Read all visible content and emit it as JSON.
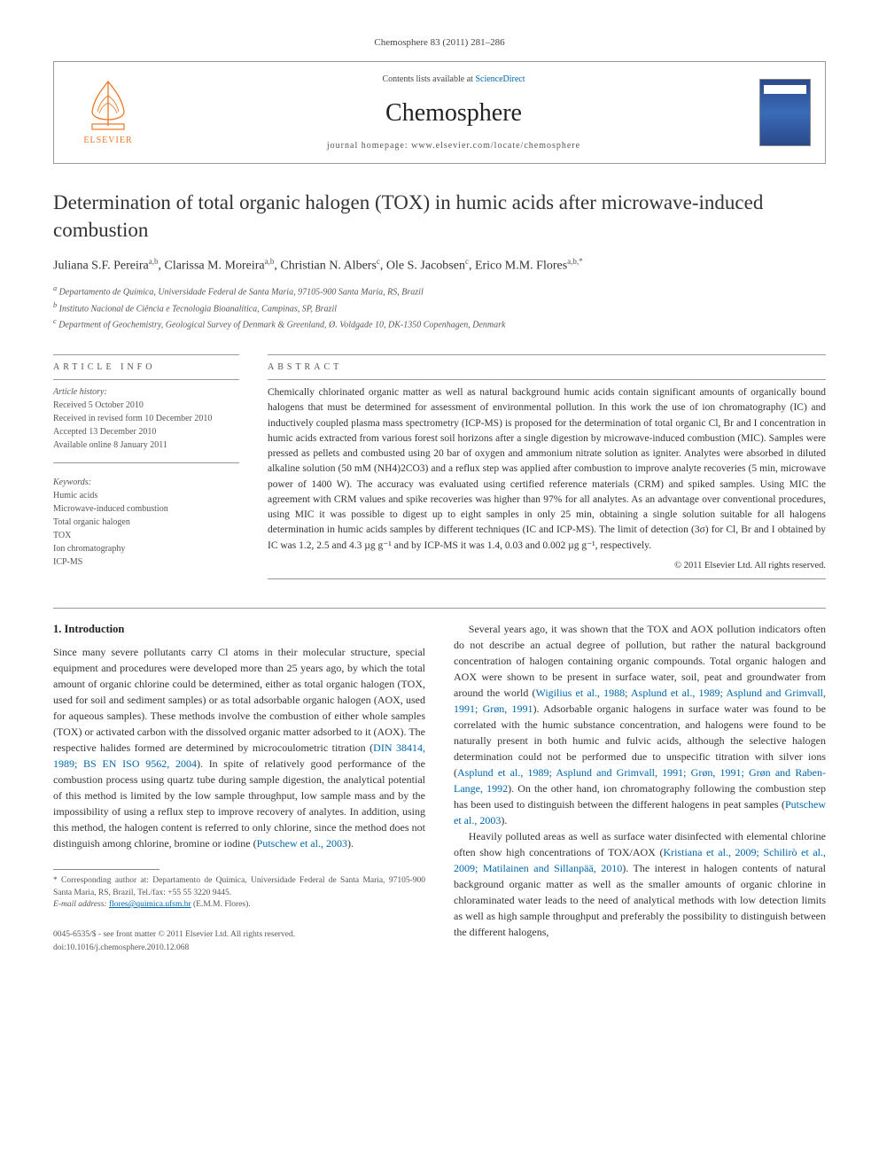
{
  "journal_ref": "Chemosphere 83 (2011) 281–286",
  "header": {
    "contents_prefix": "Contents lists available at ",
    "contents_link": "ScienceDirect",
    "journal_title": "Chemosphere",
    "homepage_prefix": "journal homepage: ",
    "homepage_url": "www.elsevier.com/locate/chemosphere",
    "publisher": "ELSEVIER"
  },
  "title": "Determination of total organic halogen (TOX) in humic acids after microwave-induced combustion",
  "authors_html": "Juliana S.F. Pereira<sup>a,b</sup>, Clarissa M. Moreira<sup>a,b</sup>, Christian N. Albers<sup>c</sup>, Ole S. Jacobsen<sup>c</sup>, Erico M.M. Flores<sup>a,b,*</sup>",
  "affiliations": {
    "a": "Departamento de Química, Universidade Federal de Santa Maria, 97105-900 Santa Maria, RS, Brazil",
    "b": "Instituto Nacional de Ciência e Tecnologia Bioanalítica, Campinas, SP, Brazil",
    "c": "Department of Geochemistry, Geological Survey of Denmark & Greenland, Ø. Voldgade 10, DK-1350 Copenhagen, Denmark"
  },
  "article_info": {
    "heading": "ARTICLE INFO",
    "history_label": "Article history:",
    "history": [
      "Received 5 October 2010",
      "Received in revised form 10 December 2010",
      "Accepted 13 December 2010",
      "Available online 8 January 2011"
    ],
    "keywords_label": "Keywords:",
    "keywords": [
      "Humic acids",
      "Microwave-induced combustion",
      "Total organic halogen",
      "TOX",
      "Ion chromatography",
      "ICP-MS"
    ]
  },
  "abstract": {
    "heading": "ABSTRACT",
    "text": "Chemically chlorinated organic matter as well as natural background humic acids contain significant amounts of organically bound halogens that must be determined for assessment of environmental pollution. In this work the use of ion chromatography (IC) and inductively coupled plasma mass spectrometry (ICP-MS) is proposed for the determination of total organic Cl, Br and I concentration in humic acids extracted from various forest soil horizons after a single digestion by microwave-induced combustion (MIC). Samples were pressed as pellets and combusted using 20 bar of oxygen and ammonium nitrate solution as igniter. Analytes were absorbed in diluted alkaline solution (50 mM (NH4)2CO3) and a reflux step was applied after combustion to improve analyte recoveries (5 min, microwave power of 1400 W). The accuracy was evaluated using certified reference materials (CRM) and spiked samples. Using MIC the agreement with CRM values and spike recoveries was higher than 97% for all analytes. As an advantage over conventional procedures, using MIC it was possible to digest up to eight samples in only 25 min, obtaining a single solution suitable for all halogens determination in humic acids samples by different techniques (IC and ICP-MS). The limit of detection (3σ) for Cl, Br and I obtained by IC was 1.2, 2.5 and 4.3 µg g⁻¹ and by ICP-MS it was 1.4, 0.03 and 0.002 µg g⁻¹, respectively.",
    "copyright": "© 2011 Elsevier Ltd. All rights reserved."
  },
  "body": {
    "section_number": "1.",
    "section_title": "Introduction",
    "col1": [
      "Since many severe pollutants carry Cl atoms in their molecular structure, special equipment and procedures were developed more than 25 years ago, by which the total amount of organic chlorine could be determined, either as total organic halogen (TOX, used for soil and sediment samples) or as total adsorbable organic halogen (AOX, used for aqueous samples). These methods involve the combustion of either whole samples (TOX) or activated carbon with the dissolved organic matter adsorbed to it (AOX). The respective halides formed are determined by microcoulometric titration (<span class=\"ref-link\">DIN 38414, 1989; BS EN ISO 9562, 2004</span>). In spite of relatively good performance of the combustion process using quartz tube during sample digestion, the analytical potential of this method is limited by the low sample throughput, low sample mass and by the impossibility of using a reflux step to improve recovery of analytes. In addition, using this method, the halogen content is referred to only chlorine, since the method does not distinguish among chlorine, bromine or iodine (<span class=\"ref-link\">Putschew et al., 2003</span>)."
    ],
    "col2": [
      "Several years ago, it was shown that the TOX and AOX pollution indicators often do not describe an actual degree of pollution, but rather the natural background concentration of halogen containing organic compounds. Total organic halogen and AOX were shown to be present in surface water, soil, peat and groundwater from around the world (<span class=\"ref-link\">Wigilius et al., 1988; Asplund et al., 1989; Asplund and Grimvall, 1991; Grøn, 1991</span>). Adsorbable organic halogens in surface water was found to be correlated with the humic substance concentration, and halogens were found to be naturally present in both humic and fulvic acids, although the selective halogen determination could not be performed due to unspecific titration with silver ions (<span class=\"ref-link\">Asplund et al., 1989; Asplund and Grimvall, 1991; Grøn, 1991; Grøn and Raben-Lange, 1992</span>). On the other hand, ion chromatography following the combustion step has been used to distinguish between the different halogens in peat samples (<span class=\"ref-link\">Putschew et al., 2003</span>).",
      "Heavily polluted areas as well as surface water disinfected with elemental chlorine often show high concentrations of TOX/AOX (<span class=\"ref-link\">Kristiana et al., 2009; Schilirò et al., 2009; Matilainen and Sillanpää, 2010</span>). The interest in halogen contents of natural background organic matter as well as the smaller amounts of organic chlorine in chloraminated water leads to the need of analytical methods with low detection limits as well as high sample throughput and preferably the possibility to distinguish between the different halogens,"
    ]
  },
  "footnote": {
    "corresponding": "* Corresponding author at: Departamento de Química, Universidade Federal de Santa Maria, 97105-900 Santa Maria, RS, Brazil, Tel./fax: +55 55 3220 9445.",
    "email_label": "E-mail address:",
    "email": "flores@quimica.ufsm.br",
    "email_owner": "(E.M.M. Flores)."
  },
  "doi": {
    "line1": "0045-6535/$ - see front matter © 2011 Elsevier Ltd. All rights reserved.",
    "line2": "doi:10.1016/j.chemosphere.2010.12.068"
  },
  "colors": {
    "link": "#0066aa",
    "orange": "#ee7722",
    "text": "#333333",
    "muted": "#555555",
    "rule": "#999999"
  }
}
